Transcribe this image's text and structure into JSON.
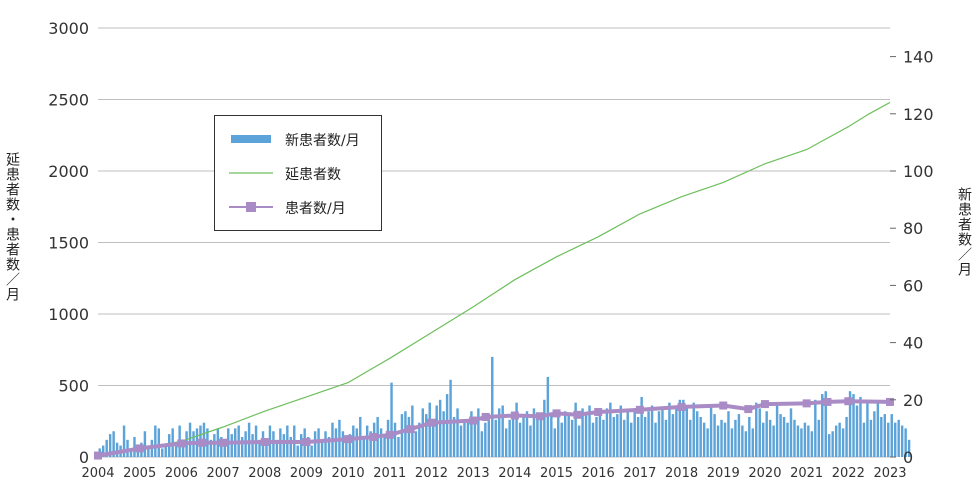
{
  "chart_data": {
    "type": "bar+line",
    "title": "",
    "xlabel": "",
    "ylabel_left": "延患者数・患者数／月",
    "ylabel_right": "新患者数／月",
    "x_ticks": [
      "2004",
      "2005",
      "2006",
      "2007",
      "2008",
      "2009",
      "2010",
      "2011",
      "2012",
      "2013",
      "2014",
      "2015",
      "2016",
      "2017",
      "2018",
      "2019",
      "2020",
      "2021",
      "2022",
      "2023"
    ],
    "ylim_left": [
      0,
      3000
    ],
    "yticks_left": [
      0,
      500,
      1000,
      1500,
      2000,
      2500,
      3000
    ],
    "ylim_right": [
      0,
      150
    ],
    "yticks_right": [
      0,
      20,
      40,
      60,
      80,
      100,
      120,
      140
    ],
    "grid": "horizontal",
    "legend_position": "upper-left",
    "colors": {
      "bars": "#5ba3d9",
      "cumulative_line": "#6dbf5c",
      "patients_line": "#a98bc6",
      "grid": "#bfbfbf"
    },
    "series": [
      {
        "name": "新患者数/月",
        "type": "bar",
        "axis": "right",
        "x_note": "monthly values per year (Jan–Dec)",
        "values_by_year": {
          "2004": [
            3,
            4,
            6,
            8,
            9,
            5,
            4,
            11,
            6,
            3,
            7,
            4
          ],
          "2005": [
            5,
            9,
            4,
            6,
            11,
            10,
            3,
            4,
            8,
            10,
            5,
            11
          ],
          "2006": [
            4,
            9,
            12,
            9,
            10,
            11,
            12,
            10,
            6,
            8,
            10,
            7
          ],
          "2007": [
            5,
            10,
            8,
            10,
            11,
            7,
            9,
            12,
            8,
            11,
            6,
            9
          ],
          "2008": [
            6,
            11,
            9,
            6,
            10,
            8,
            11,
            7,
            11,
            4,
            8,
            10
          ],
          "2009": [
            7,
            4,
            9,
            10,
            6,
            9,
            7,
            12,
            10,
            13,
            9,
            5
          ],
          "2010": [
            8,
            11,
            10,
            14,
            7,
            11,
            9,
            12,
            14,
            10,
            8,
            13
          ],
          "2011": [
            26,
            12,
            7,
            15,
            16,
            14,
            18,
            9,
            12,
            17,
            15,
            19
          ],
          "2012": [
            13,
            18,
            20,
            16,
            22,
            27,
            14,
            17,
            11,
            12,
            13,
            16
          ],
          "2013": [
            14,
            17,
            9,
            12,
            15,
            35,
            13,
            17,
            18,
            10,
            13,
            15
          ],
          "2014": [
            19,
            12,
            14,
            16,
            11,
            17,
            13,
            15,
            20,
            28,
            15,
            10
          ],
          "2015": [
            14,
            12,
            16,
            15,
            13,
            19,
            11,
            17,
            15,
            18,
            12,
            14
          ],
          "2016": [
            16,
            13,
            17,
            19,
            14,
            15,
            18,
            13,
            16,
            12,
            17,
            14
          ],
          "2017": [
            21,
            14,
            16,
            18,
            12,
            16,
            17,
            13,
            19,
            15,
            18,
            20
          ],
          "2018": [
            20,
            17,
            13,
            19,
            16,
            14,
            12,
            10,
            18,
            15,
            11,
            13
          ],
          "2019": [
            12,
            16,
            10,
            13,
            15,
            11,
            9,
            14,
            10,
            19,
            17,
            12
          ],
          "2020": [
            16,
            13,
            11,
            18,
            15,
            14,
            12,
            17,
            13,
            11,
            10,
            12
          ],
          "2021": [
            11,
            9,
            20,
            13,
            22,
            23,
            8,
            9,
            11,
            12,
            10,
            14
          ],
          "2022": [
            23,
            22,
            18,
            21,
            12,
            20,
            13,
            16,
            19,
            14,
            15,
            12
          ],
          "2023": [
            15,
            12,
            13,
            11,
            10,
            6
          ]
        }
      },
      {
        "name": "延患者数",
        "type": "line",
        "axis": "left",
        "points": [
          {
            "x": 2004.0,
            "y": 0
          },
          {
            "x": 2005.0,
            "y": 60
          },
          {
            "x": 2006.0,
            "y": 110
          },
          {
            "x": 2007.0,
            "y": 210
          },
          {
            "x": 2008.0,
            "y": 320
          },
          {
            "x": 2009.0,
            "y": 420
          },
          {
            "x": 2010.0,
            "y": 520
          },
          {
            "x": 2011.0,
            "y": 690
          },
          {
            "x": 2012.0,
            "y": 870
          },
          {
            "x": 2013.0,
            "y": 1050
          },
          {
            "x": 2014.0,
            "y": 1240
          },
          {
            "x": 2015.0,
            "y": 1400
          },
          {
            "x": 2016.0,
            "y": 1540
          },
          {
            "x": 2017.0,
            "y": 1700
          },
          {
            "x": 2018.0,
            "y": 1820
          },
          {
            "x": 2019.0,
            "y": 1920
          },
          {
            "x": 2020.0,
            "y": 2050
          },
          {
            "x": 2021.0,
            "y": 2150
          },
          {
            "x": 2022.0,
            "y": 2310
          },
          {
            "x": 2022.5,
            "y": 2400
          },
          {
            "x": 2023.0,
            "y": 2480
          }
        ]
      },
      {
        "name": "患者数/月",
        "type": "line-marker",
        "axis": "left",
        "points": [
          {
            "x": 2004.0,
            "y": 10
          },
          {
            "x": 2005.0,
            "y": 60
          },
          {
            "x": 2006.0,
            "y": 95
          },
          {
            "x": 2006.5,
            "y": 100
          },
          {
            "x": 2007.0,
            "y": 100
          },
          {
            "x": 2008.0,
            "y": 105
          },
          {
            "x": 2009.0,
            "y": 105
          },
          {
            "x": 2010.0,
            "y": 125
          },
          {
            "x": 2010.6,
            "y": 140
          },
          {
            "x": 2011.0,
            "y": 155
          },
          {
            "x": 2011.5,
            "y": 195
          },
          {
            "x": 2012.0,
            "y": 240
          },
          {
            "x": 2013.0,
            "y": 255
          },
          {
            "x": 2013.3,
            "y": 280
          },
          {
            "x": 2014.0,
            "y": 290
          },
          {
            "x": 2014.6,
            "y": 285
          },
          {
            "x": 2015.0,
            "y": 305
          },
          {
            "x": 2015.5,
            "y": 295
          },
          {
            "x": 2016.0,
            "y": 315
          },
          {
            "x": 2017.0,
            "y": 330
          },
          {
            "x": 2018.0,
            "y": 350
          },
          {
            "x": 2019.0,
            "y": 360
          },
          {
            "x": 2019.6,
            "y": 335
          },
          {
            "x": 2020.0,
            "y": 370
          },
          {
            "x": 2021.0,
            "y": 375
          },
          {
            "x": 2021.5,
            "y": 385
          },
          {
            "x": 2022.0,
            "y": 390
          },
          {
            "x": 2023.0,
            "y": 385
          }
        ]
      }
    ]
  }
}
